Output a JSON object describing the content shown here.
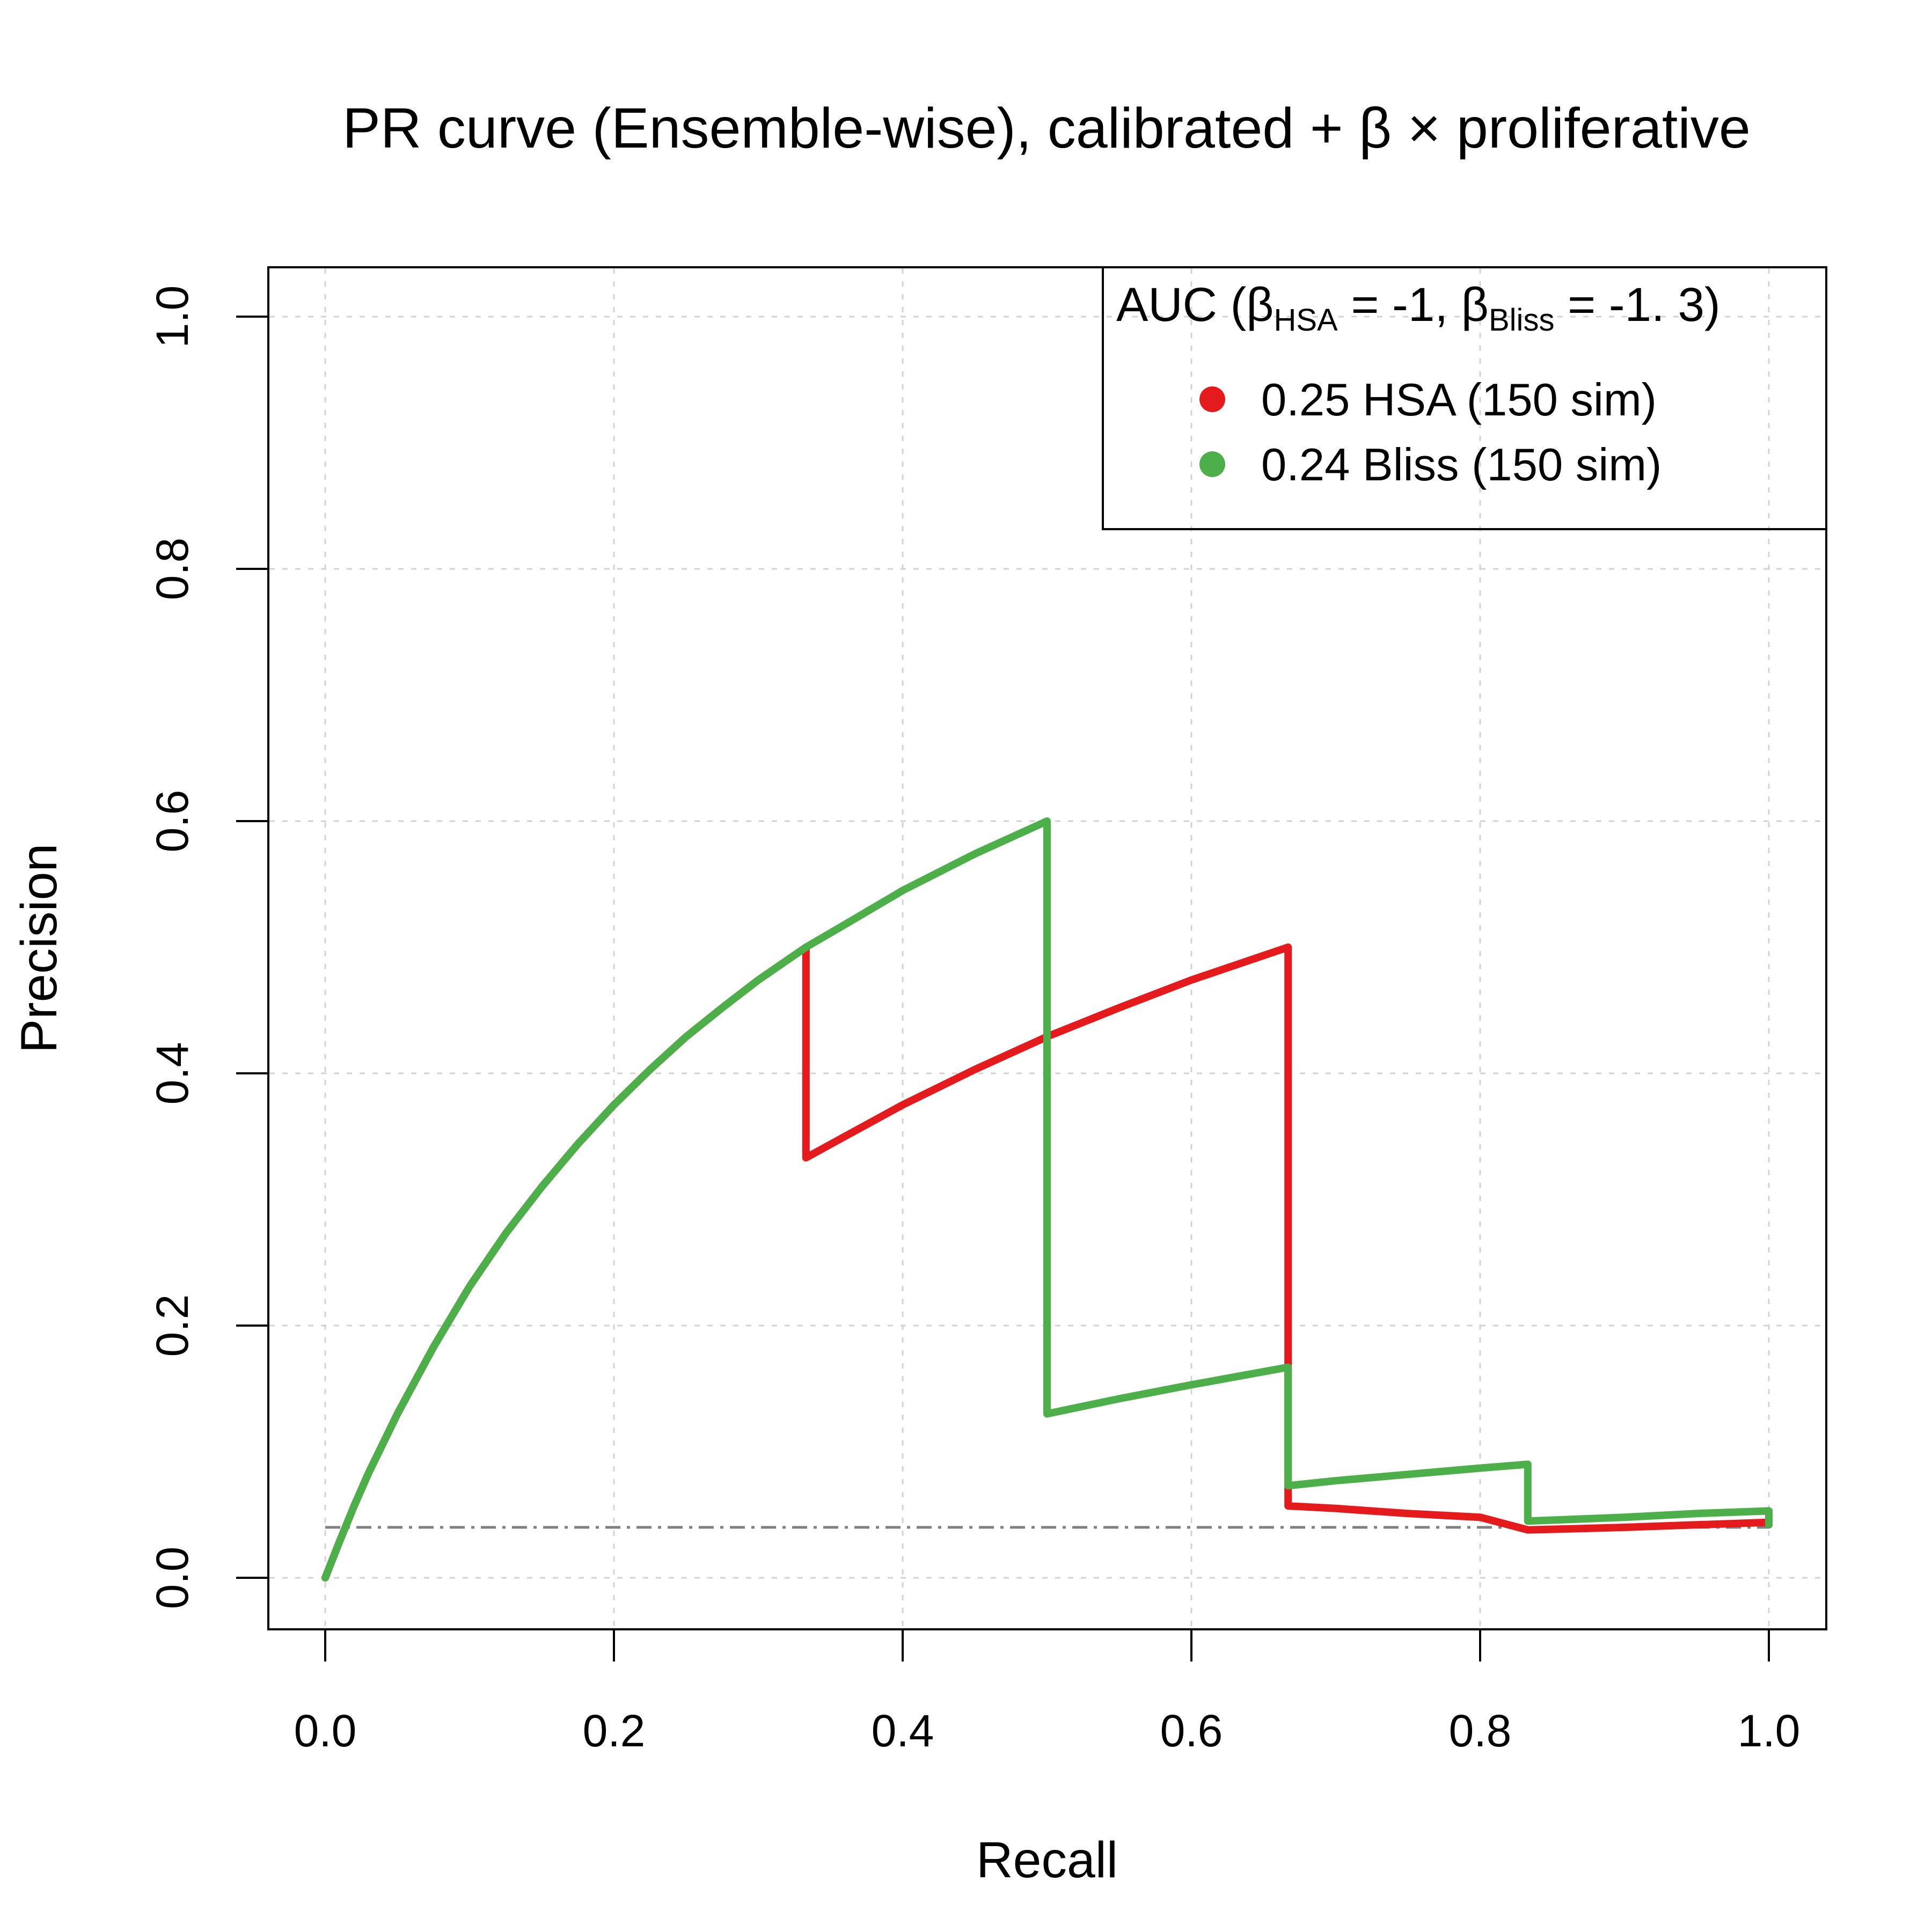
{
  "chart_data": {
    "type": "line",
    "title": "PR curve (Ensemble-wise), calibrated + β × proliferative",
    "xlabel": "Recall",
    "ylabel": "Precision",
    "xlim": [
      0,
      1
    ],
    "ylim": [
      0,
      1
    ],
    "x_ticks": [
      "0.0",
      "0.2",
      "0.4",
      "0.6",
      "0.8",
      "1.0"
    ],
    "y_ticks": [
      "0.0",
      "0.2",
      "0.4",
      "0.6",
      "0.8",
      "1.0"
    ],
    "grid": true,
    "legend": {
      "placement": "top-right",
      "title_parts": {
        "prefix": "AUC (",
        "beta1": "β",
        "sub1": "HSA",
        "mid": " = -1, ",
        "beta2": "β",
        "sub2": "Bliss",
        "suffix": " = -1. 3)"
      },
      "entries": [
        "0.25 HSA (150 sim)",
        "0.24 Bliss (150 sim)"
      ]
    },
    "baseline": 0.04,
    "series": [
      {
        "name": "0.25 HSA (150 sim)",
        "color": "#E41A1C",
        "x": [
          0,
          0.01,
          0.02,
          0.03,
          0.05,
          0.075,
          0.1,
          0.125,
          0.15,
          0.175,
          0.2,
          0.225,
          0.25,
          0.275,
          0.3,
          0.333,
          0.333,
          0.36,
          0.4,
          0.45,
          0.5,
          0.55,
          0.6,
          0.667,
          0.667,
          0.7,
          0.75,
          0.8,
          0.833,
          0.833,
          0.87,
          0.9,
          0.95,
          1.0,
          1.0
        ],
        "y": [
          0,
          0.029,
          0.057,
          0.083,
          0.13,
          0.183,
          0.231,
          0.273,
          0.31,
          0.344,
          0.375,
          0.403,
          0.429,
          0.452,
          0.474,
          0.5,
          0.333,
          0.35,
          0.375,
          0.403,
          0.429,
          0.452,
          0.474,
          0.5,
          0.057,
          0.055,
          0.051,
          0.048,
          0.038,
          0.038,
          0.039,
          0.04,
          0.042,
          0.044,
          0.042
        ]
      },
      {
        "name": "0.24 Bliss (150 sim)",
        "color": "#4DAF4A",
        "x": [
          0,
          0.01,
          0.02,
          0.03,
          0.05,
          0.075,
          0.1,
          0.125,
          0.15,
          0.175,
          0.2,
          0.225,
          0.25,
          0.275,
          0.3,
          0.333,
          0.36,
          0.4,
          0.45,
          0.5,
          0.5,
          0.55,
          0.6,
          0.667,
          0.667,
          0.7,
          0.75,
          0.8,
          0.833,
          0.833,
          0.9,
          0.95,
          1.0,
          1.0
        ],
        "y": [
          0,
          0.029,
          0.057,
          0.083,
          0.13,
          0.183,
          0.231,
          0.273,
          0.31,
          0.344,
          0.375,
          0.403,
          0.429,
          0.452,
          0.474,
          0.5,
          0.518,
          0.545,
          0.574,
          0.6,
          0.13,
          0.142,
          0.153,
          0.167,
          0.073,
          0.077,
          0.082,
          0.087,
          0.09,
          0.045,
          0.048,
          0.051,
          0.053,
          0.042
        ]
      }
    ]
  }
}
